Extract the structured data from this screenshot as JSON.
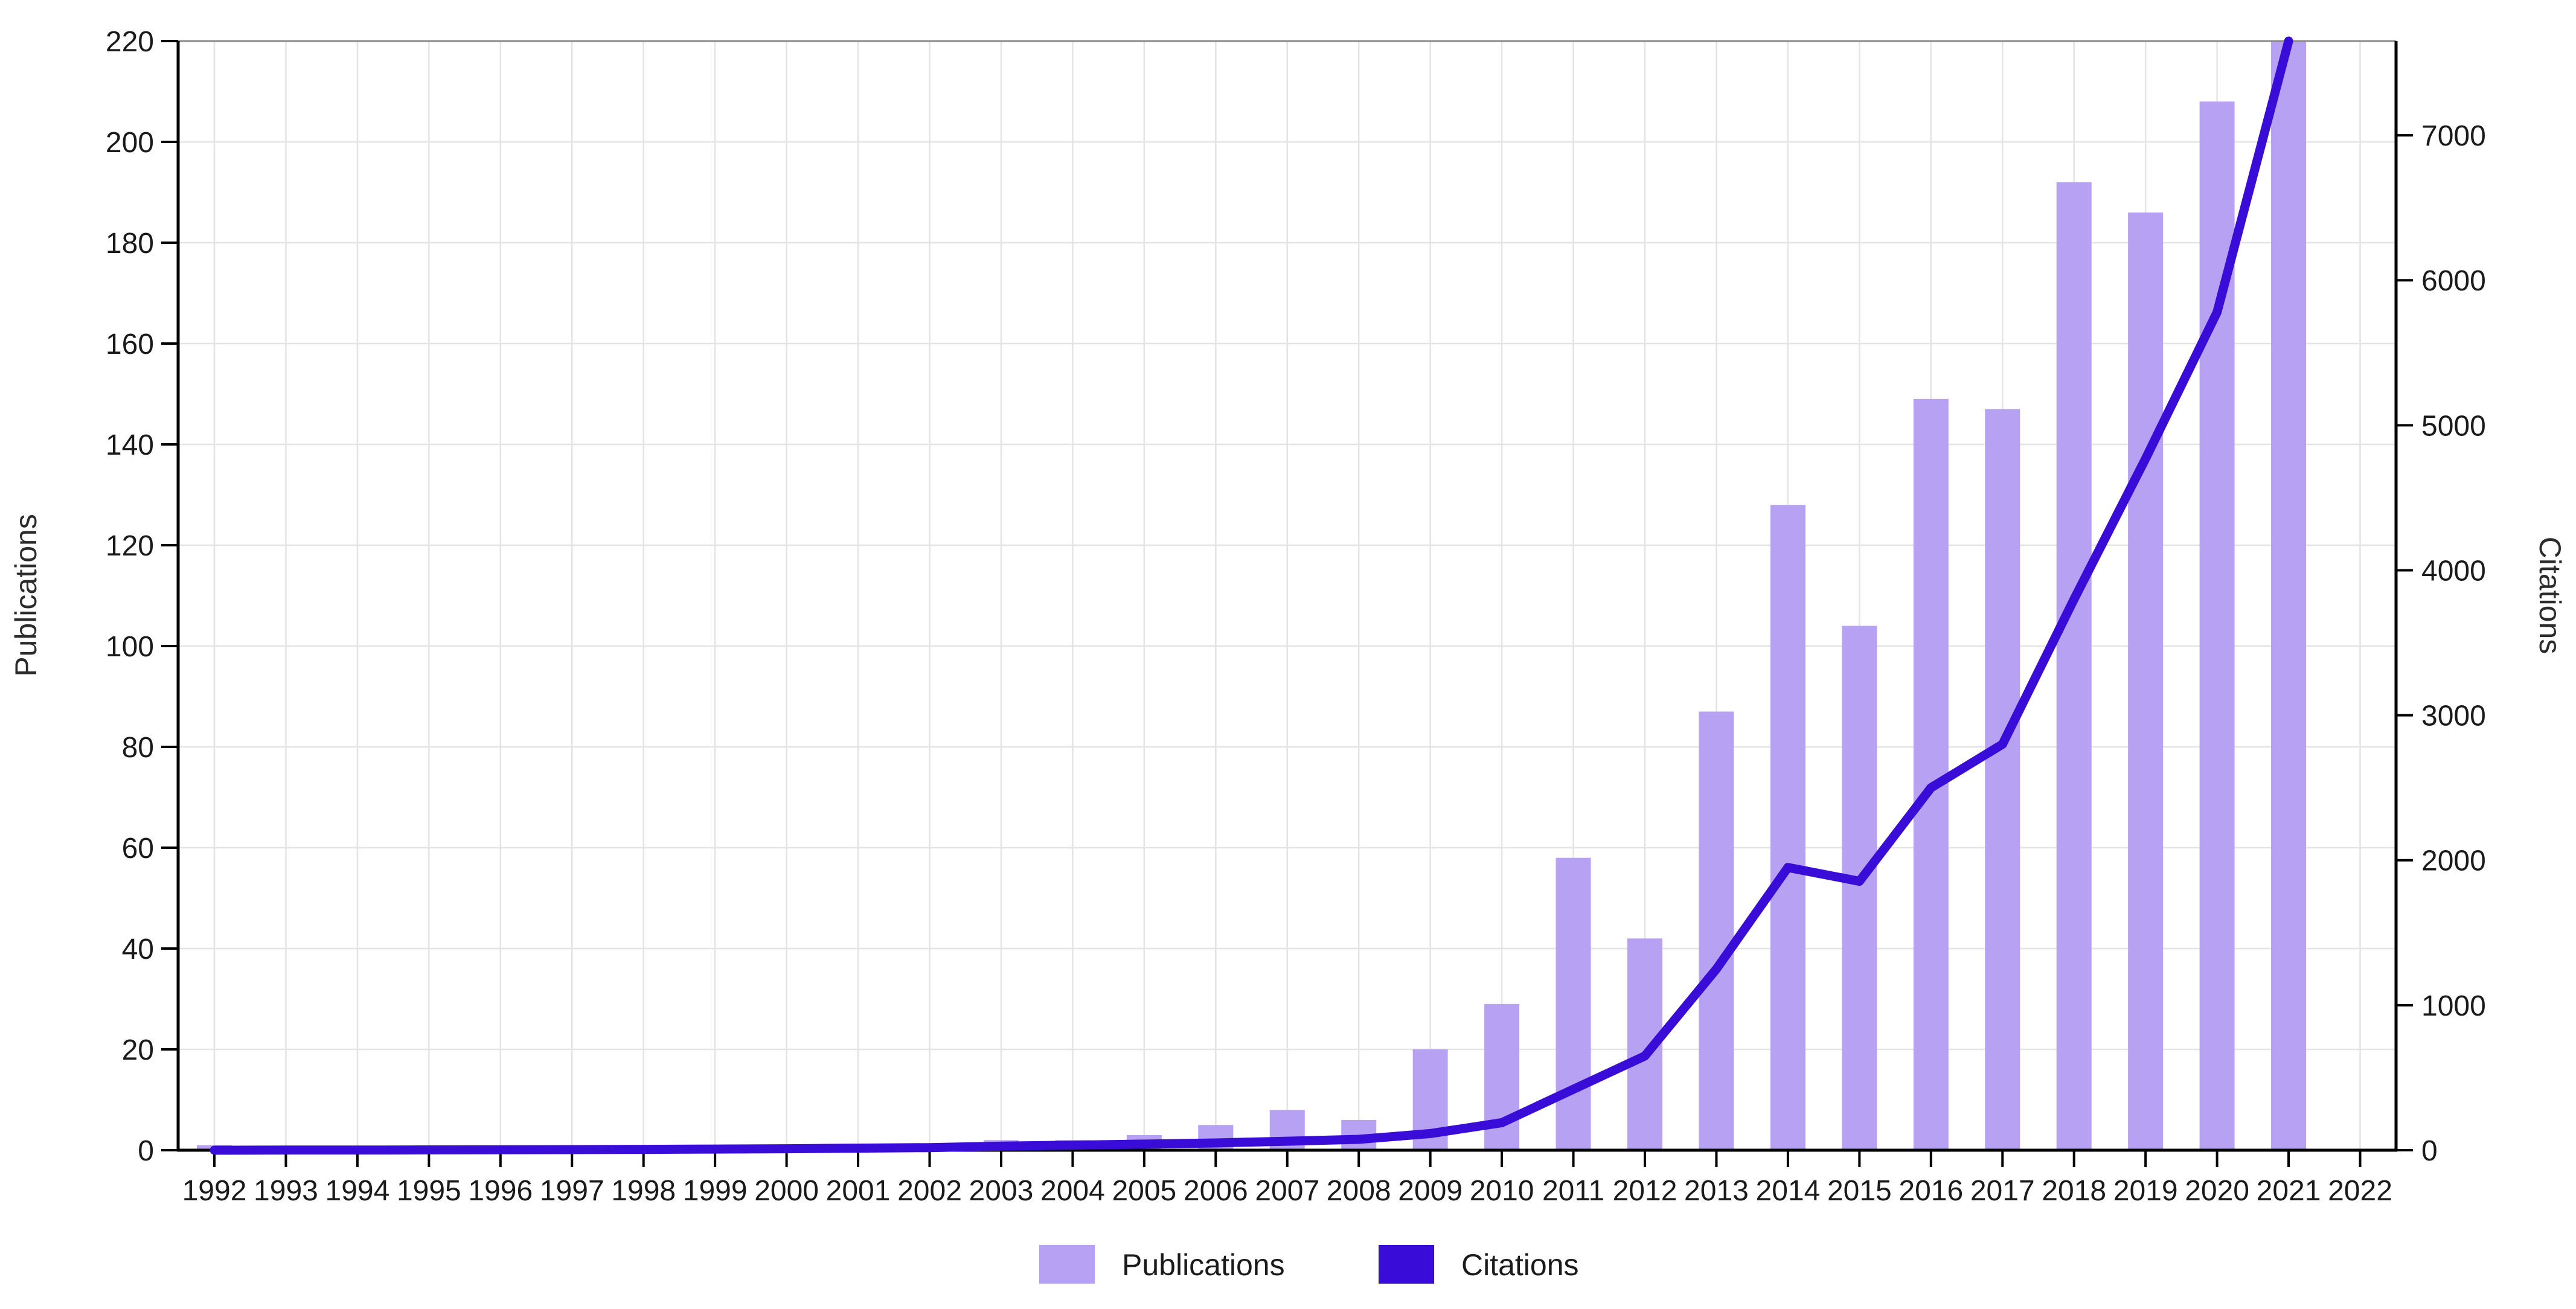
{
  "chart_data": {
    "type": "bar",
    "subtype": "dual-axis bar+line",
    "categories": [
      1992,
      1993,
      1994,
      1995,
      1996,
      1997,
      1998,
      1999,
      2000,
      2001,
      2002,
      2003,
      2004,
      2005,
      2006,
      2007,
      2008,
      2009,
      2010,
      2011,
      2012,
      2013,
      2014,
      2015,
      2016,
      2017,
      2018,
      2019,
      2020,
      2021,
      2022
    ],
    "series": [
      {
        "name": "Publications",
        "type": "bar",
        "axis": "left",
        "color": "#b7a1f2",
        "values": [
          1,
          0,
          0,
          0,
          0,
          1,
          0,
          1,
          0,
          0,
          1,
          2,
          2,
          3,
          5,
          8,
          6,
          20,
          29,
          58,
          42,
          87,
          128,
          104,
          149,
          147,
          192,
          186,
          208,
          220,
          null
        ]
      },
      {
        "name": "Citations",
        "type": "line",
        "axis": "right",
        "color": "#3a0cd8",
        "values": [
          0,
          1,
          1,
          2,
          3,
          4,
          6,
          8,
          10,
          14,
          18,
          28,
          35,
          42,
          50,
          62,
          75,
          115,
          190,
          420,
          650,
          1250,
          1950,
          1855,
          2500,
          2800,
          3800,
          4770,
          5780,
          7650,
          null
        ]
      }
    ],
    "title": "",
    "xlabel": "",
    "left_axis": {
      "label": "Publications",
      "min": 0,
      "max": 220,
      "tick_step": 20,
      "ticks": [
        0,
        20,
        40,
        60,
        80,
        100,
        120,
        140,
        160,
        180,
        200,
        220
      ]
    },
    "right_axis": {
      "label": "Citations",
      "min": 0,
      "max": 7650,
      "tick_step": 1000,
      "ticks": [
        0,
        1000,
        2000,
        3000,
        4000,
        5000,
        6000,
        7000
      ]
    },
    "x_axis": {
      "tick_labels": [
        "1992",
        "1993",
        "1994",
        "1995",
        "1996",
        "1997",
        "1998",
        "1999",
        "2000",
        "2001",
        "2002",
        "2003",
        "2004",
        "2005",
        "2006",
        "2007",
        "2008",
        "2009",
        "2010",
        "2011",
        "2012",
        "2013",
        "2014",
        "2015",
        "2016",
        "2017",
        "2018",
        "2019",
        "2020",
        "2021",
        "2022"
      ]
    },
    "grid": "on",
    "legend_position": "bottom-center",
    "legend": [
      {
        "label": "Publications",
        "color": "#b7a1f2"
      },
      {
        "label": "Citations",
        "color": "#3a0cd8"
      }
    ],
    "colors": {
      "grid_line": "#e4e4e4",
      "axis_line": "#000000",
      "top_border": "#8a8a8a",
      "tick_text": "#1a1a1a",
      "background": "#ffffff"
    }
  }
}
